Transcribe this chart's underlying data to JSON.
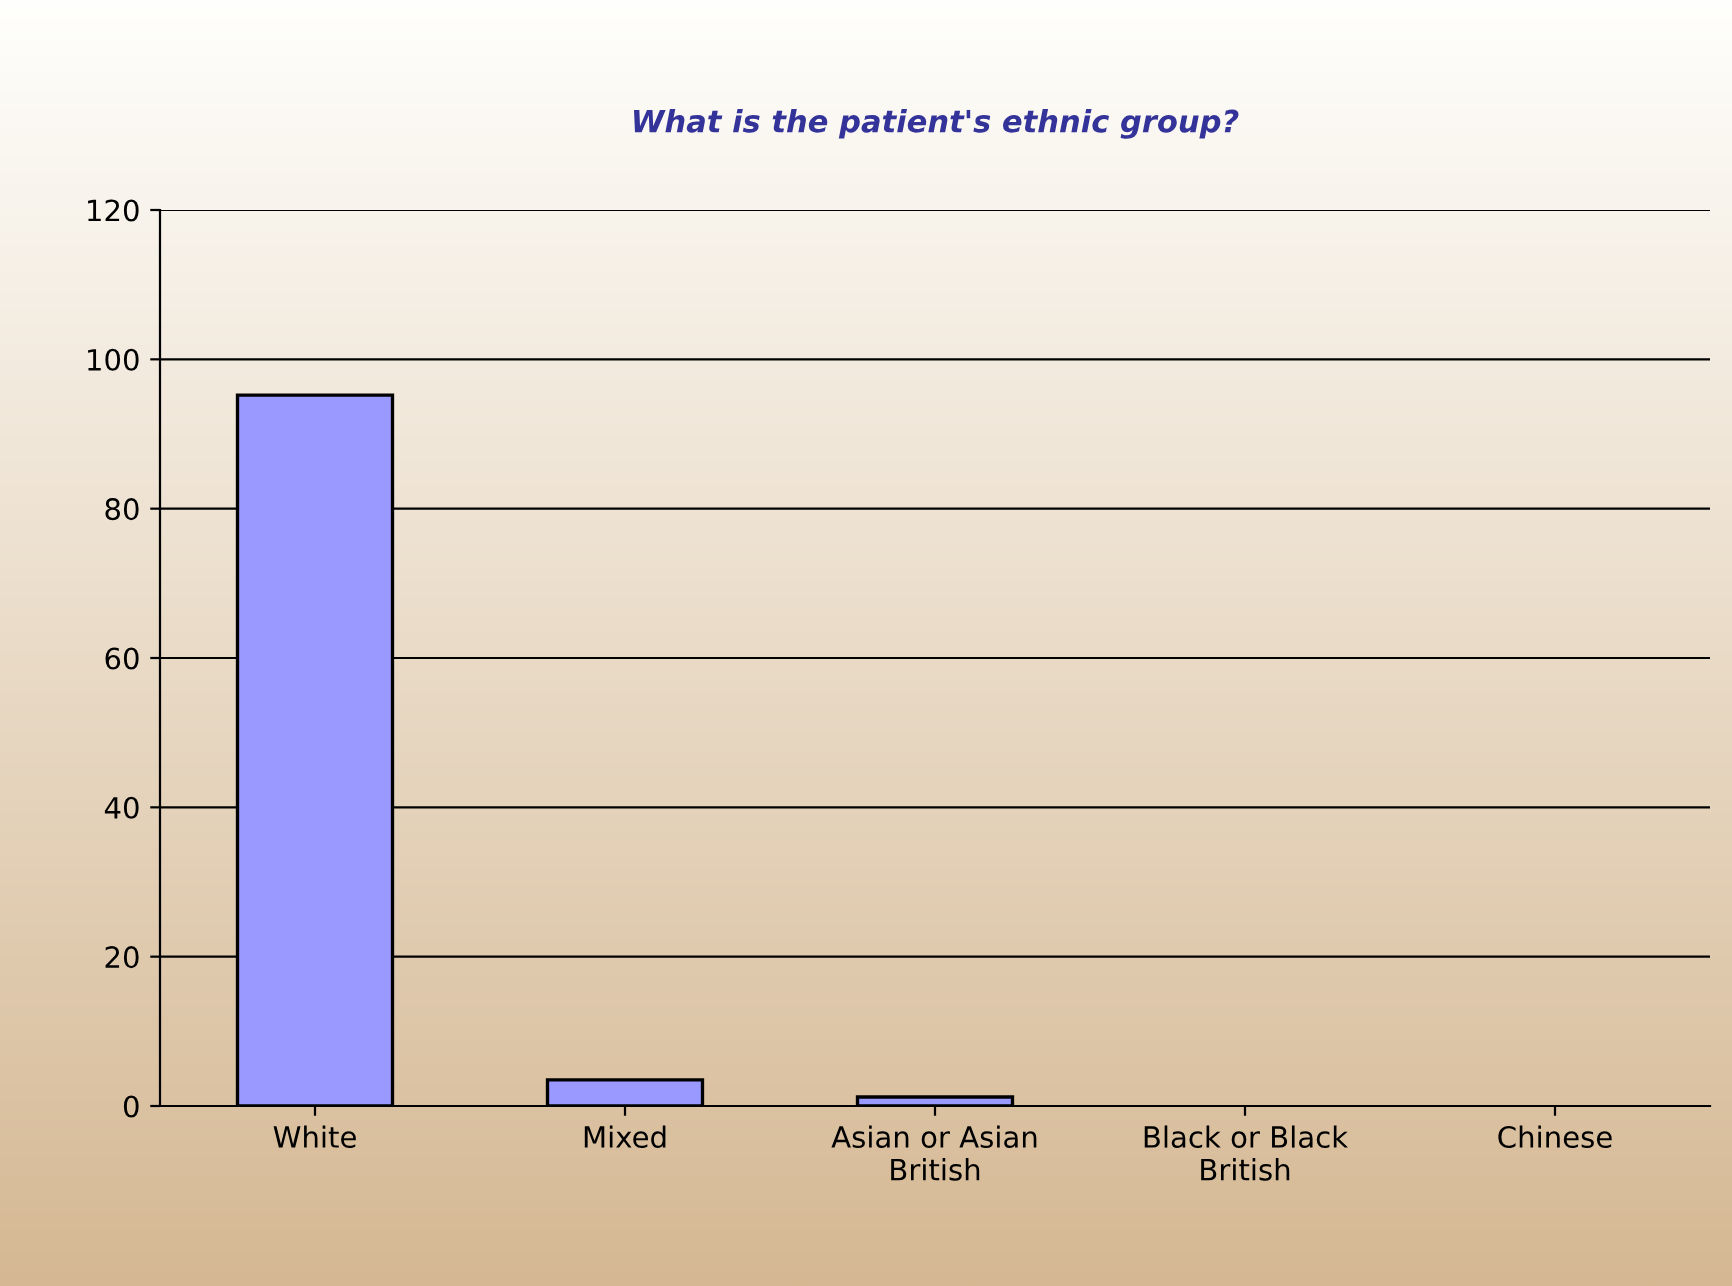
{
  "chart_data": {
    "type": "bar",
    "title": "What is the patient's ethnic group?",
    "categories": [
      "White",
      "Mixed",
      "Asian or Asian\nBritish",
      "Black or Black\nBritish",
      "Chinese"
    ],
    "values": [
      95.2,
      3.5,
      1.2,
      0,
      0
    ],
    "color": "#9999ff",
    "ylim": [
      0,
      120
    ],
    "yticks": [
      0,
      20,
      40,
      60,
      80,
      100,
      120
    ],
    "grid": "y",
    "legend": false
  }
}
